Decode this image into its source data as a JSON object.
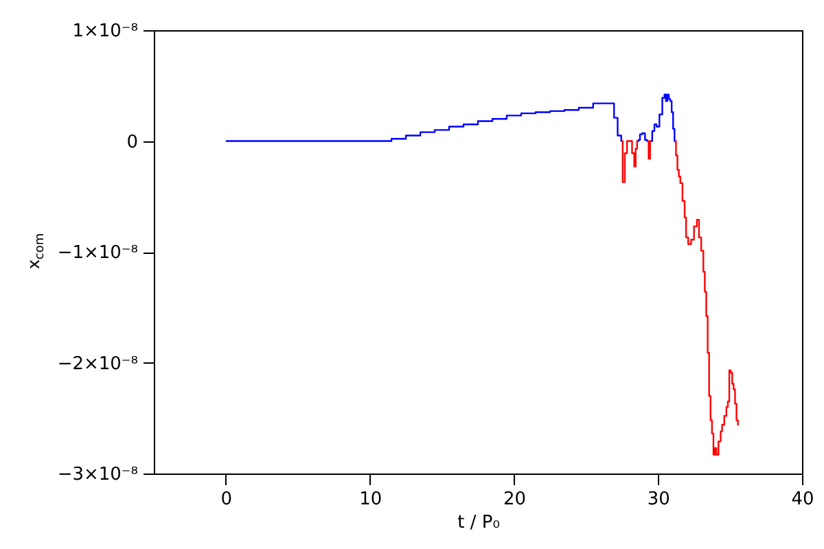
{
  "chart_data": {
    "type": "step",
    "xlabel": "t / P₀",
    "ylabel": "x$_{com}$",
    "xlim": [
      -5,
      40
    ],
    "xticks": [
      0,
      10,
      20,
      30,
      40
    ],
    "ylim": [
      -3e-08,
      1e-08
    ],
    "yticks": [
      {
        "value": -3e-08,
        "label": "−3×10⁻⁸"
      },
      {
        "value": -2e-08,
        "label": "−2×10⁻⁸"
      },
      {
        "value": -1e-08,
        "label": "−1×10⁻⁸"
      },
      0,
      {
        "value": 1e-08,
        "label": "1×10⁻⁸"
      }
    ],
    "grid": false,
    "series": [
      {
        "color": "#0000ff",
        "x": [
          0,
          11,
          12,
          13,
          14,
          15,
          16,
          17,
          18,
          19,
          20,
          21,
          22,
          23,
          24,
          25,
          26,
          26.9,
          27.0,
          27.4,
          27.5,
          27.6,
          28.6,
          28.7,
          28.8,
          29.0,
          29.2,
          29.3,
          29.4,
          29.5,
          29.7,
          29.8,
          30.0,
          30.2,
          30.4,
          30.5,
          30.6,
          30.7,
          30.8,
          30.9,
          31.0,
          31.1,
          31.2
        ],
        "values": [
          0,
          0,
          2e-10,
          5e-10,
          8e-10,
          1e-09,
          1.3e-09,
          1.5e-09,
          1.8e-09,
          2e-09,
          2.3e-09,
          2.5e-09,
          2.6e-09,
          2.7e-09,
          2.8e-09,
          3e-09,
          3.4e-09,
          3.4e-09,
          2.1e-09,
          5e-10,
          0,
          null,
          0,
          1e-10,
          6e-10,
          7e-10,
          1e-10,
          0,
          null,
          0,
          9e-10,
          1.5e-09,
          1.3e-09,
          2.4e-09,
          3.9e-09,
          4.2e-09,
          3.6e-09,
          4.2e-09,
          3.8e-09,
          3.6e-09,
          2.6e-09,
          1.1e-09,
          0
        ]
      },
      {
        "color": "#ff0000",
        "x": [
          27.5,
          27.6,
          27.8,
          27.9,
          28.1,
          28.3,
          28.4,
          28.5,
          28.6,
          28.7,
          29.3,
          29.4,
          29.5,
          29.6,
          31.2,
          31.3,
          31.4,
          31.5,
          31.6,
          31.8,
          31.9,
          32.0,
          32.2,
          32.4,
          32.6,
          32.8,
          32.9,
          33.1,
          33.2,
          33.3,
          33.4,
          33.5,
          33.6,
          33.7,
          33.8,
          33.9,
          34.0,
          34.1,
          34.3,
          34.4,
          34.5,
          34.7,
          34.8,
          34.9,
          35.0,
          35.1,
          35.2,
          35.3,
          35.4,
          35.5,
          35.6
        ],
        "values": [
          0,
          -3.7e-09,
          -1.1e-09,
          0,
          0,
          -1.1e-09,
          -2.3e-09,
          -7e-10,
          0,
          null,
          0,
          -1.6e-09,
          0,
          null,
          0,
          -1.3e-09,
          -2.6e-09,
          -3.2e-09,
          -3.8e-09,
          -5.4e-09,
          -6.9e-09,
          -8.7e-09,
          -9.3e-09,
          -8.9e-09,
          -7.7e-09,
          -7.1e-09,
          -8.7e-09,
          -9.9e-09,
          -1.18e-08,
          -1.36e-08,
          -1.58e-08,
          -1.91e-08,
          -2.3e-08,
          -2.52e-08,
          -2.64e-08,
          -2.83e-08,
          -2.77e-08,
          -2.83e-08,
          -2.71e-08,
          -2.62e-08,
          -2.56e-08,
          -2.48e-08,
          -2.4e-08,
          -2.35e-08,
          -2.07e-08,
          -2.09e-08,
          -2.19e-08,
          -2.24e-08,
          -2.37e-08,
          -2.52e-08,
          -2.56e-08
        ]
      }
    ]
  }
}
